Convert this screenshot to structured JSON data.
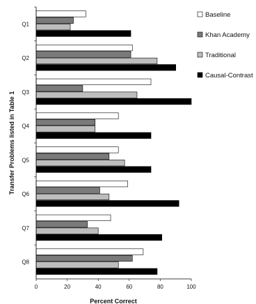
{
  "chart_data": {
    "type": "bar",
    "orientation": "horizontal",
    "categories": [
      "Q1",
      "Q2",
      "Q3",
      "Q4",
      "Q5",
      "Q6",
      "Q7",
      "Q8"
    ],
    "series": [
      {
        "name": "Baseline",
        "color": "#ffffff",
        "values": [
          32,
          62,
          74,
          53,
          53,
          59,
          48,
          69
        ]
      },
      {
        "name": "Khan Academy",
        "color": "#7a7a7a",
        "values": [
          24,
          61,
          30,
          38,
          47,
          41,
          33,
          62
        ]
      },
      {
        "name": "Traditional",
        "color": "#bdbdbd",
        "values": [
          22,
          78,
          65,
          38,
          57,
          47,
          40,
          53
        ]
      },
      {
        "name": "Causal-Contrast",
        "color": "#000000",
        "values": [
          61,
          90,
          100,
          74,
          74,
          92,
          81,
          78
        ]
      }
    ],
    "xlabel": "Percent Correct",
    "ylabel": "Transfer Problems listed in Table 1",
    "xlim": [
      0,
      100
    ],
    "xticks": [
      "0",
      "20",
      "40",
      "60",
      "80",
      "100"
    ],
    "legend_position": "right",
    "grid": false
  }
}
